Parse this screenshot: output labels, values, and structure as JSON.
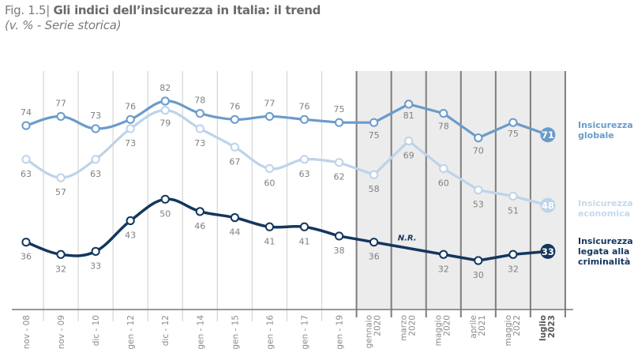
{
  "header": {
    "fig_label": "Fig. 1.5",
    "title": "Gli indici dell’insicurezza in Italia: il trend",
    "subtitle": "(v. %  - Serie storica)"
  },
  "chart_data": {
    "type": "line",
    "title": "Gli indici dell’insicurezza in Italia: il trend",
    "subtitle": "(v. % - Serie storica)",
    "xlabel": "",
    "ylabel": "",
    "ylim": [
      25,
      90
    ],
    "grid": true,
    "legend_placement": "right",
    "categories": [
      "nov - 08",
      "nov - 09",
      "dic - 10",
      "gen - 12",
      "dic - 12",
      "gen - 14",
      "gen - 15",
      "gen - 16",
      "gen - 17",
      "gen - 19",
      "gennaio 2020",
      "marzo 2020",
      "maggio 2020",
      "aprile 2021",
      "maggio 2022",
      "luglio 2023"
    ],
    "shaded_from_index": 10,
    "series": [
      {
        "name": "Insicurezza globale",
        "color": "#6a9bcb",
        "label_position": "above",
        "values": [
          74,
          77,
          73,
          76,
          82,
          78,
          76,
          77,
          76,
          75,
          75,
          81,
          78,
          70,
          75,
          71
        ]
      },
      {
        "name": "Insicurezza economica",
        "color": "#bdd3ea",
        "label_position": "below",
        "values": [
          63,
          57,
          63,
          73,
          79,
          73,
          67,
          60,
          63,
          62,
          58,
          69,
          60,
          53,
          51,
          48
        ]
      },
      {
        "name": "Insicurezza legata alla criminalità",
        "color": "#14365e",
        "label_position": "below",
        "values": [
          36,
          32,
          33,
          43,
          50,
          46,
          44,
          41,
          41,
          38,
          36,
          null,
          32,
          30,
          32,
          33
        ]
      }
    ],
    "annotations": [
      {
        "text": "N.R.",
        "series": "Insicurezza legata alla criminalità",
        "category": "marzo 2020"
      }
    ]
  },
  "legend": [
    {
      "line1": "Insicurezza",
      "line2": "globale",
      "line3": ""
    },
    {
      "line1": "Insicurezza",
      "line2": "economica",
      "line3": ""
    },
    {
      "line1": "Insicurezza",
      "line2": "legata alla",
      "line3": "criminalità"
    }
  ]
}
